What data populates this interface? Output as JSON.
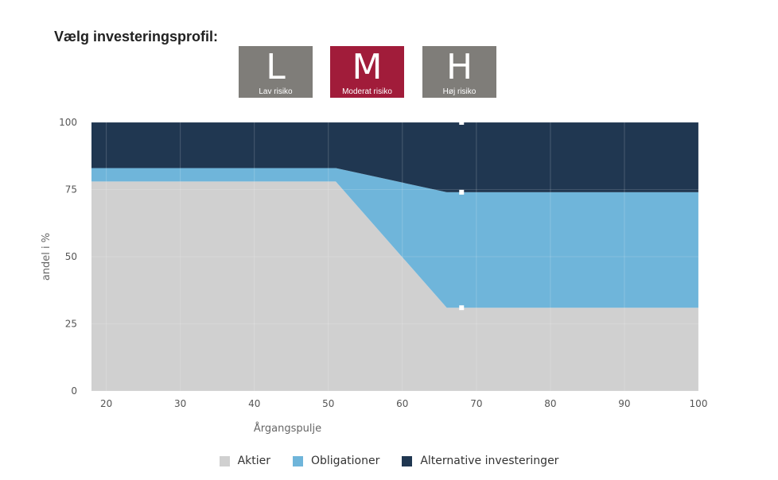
{
  "header": {
    "title": "Vælg investeringsprofil:"
  },
  "profiles": [
    {
      "letter": "L",
      "label": "Lav risiko",
      "color": "#7f7d79",
      "selected": false
    },
    {
      "letter": "M",
      "label": "Moderat risiko",
      "color": "#a11c3a",
      "selected": true
    },
    {
      "letter": "H",
      "label": "Høj risiko",
      "color": "#7f7d79",
      "selected": false
    }
  ],
  "chart_data": {
    "type": "area",
    "stacked": true,
    "x": [
      18,
      51,
      66,
      100
    ],
    "series": [
      {
        "name": "Aktier",
        "color": "#d0d0d0",
        "values": [
          78,
          78,
          31,
          31
        ]
      },
      {
        "name": "Obligationer",
        "color": "#6fb5da",
        "values": [
          5,
          5,
          43,
          43
        ]
      },
      {
        "name": "Alternative investeringer",
        "color": "#203751",
        "values": [
          17,
          17,
          26,
          26
        ]
      }
    ],
    "xlabel": "Årgangspulje",
    "ylabel": "andel i %",
    "xlim": [
      18,
      100
    ],
    "ylim": [
      0,
      100
    ],
    "x_ticks": [
      20,
      30,
      40,
      50,
      60,
      70,
      80,
      90,
      100
    ],
    "y_ticks": [
      0,
      25,
      50,
      75,
      100
    ],
    "grid": true,
    "marker_x": 68,
    "legend_position": "bottom"
  }
}
